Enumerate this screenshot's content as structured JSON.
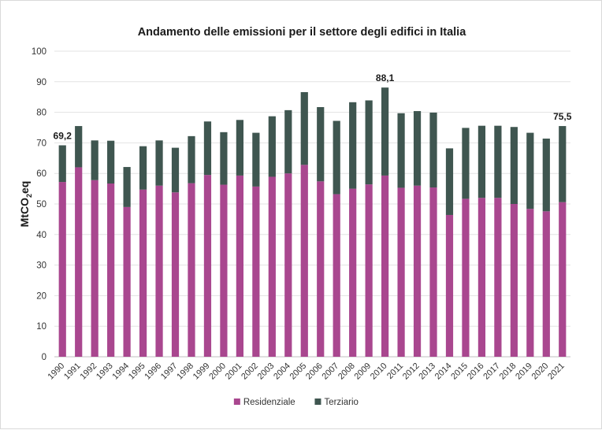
{
  "chart_data": {
    "type": "bar",
    "stacked": true,
    "title": "Andamento delle emissioni per il settore degli edifici in Italia",
    "ylabel": {
      "main": "MtCO",
      "sub": "2",
      "tail": "eq"
    },
    "xlabel": "",
    "ylim": [
      0,
      100
    ],
    "yticks": [
      0,
      10,
      20,
      30,
      40,
      50,
      60,
      70,
      80,
      90,
      100
    ],
    "grid": true,
    "legend_position": "bottom-center",
    "categories": [
      "1990",
      "1991",
      "1992",
      "1993",
      "1994",
      "1995",
      "1996",
      "1997",
      "1998",
      "1999",
      "2000",
      "2001",
      "2002",
      "2003",
      "2004",
      "2005",
      "2006",
      "2007",
      "2008",
      "2009",
      "2010",
      "2011",
      "2012",
      "2013",
      "2014",
      "2015",
      "2016",
      "2017",
      "2018",
      "2019",
      "2020",
      "2021"
    ],
    "series": [
      {
        "name": "Residenziale",
        "color": "#a9478f",
        "values": [
          57.2,
          62.0,
          57.8,
          56.7,
          49.0,
          54.7,
          56.0,
          53.8,
          56.8,
          59.5,
          56.3,
          59.3,
          55.7,
          58.9,
          60.0,
          62.8,
          57.4,
          53.2,
          55.0,
          56.4,
          59.3,
          55.3,
          56.0,
          55.4,
          46.4,
          51.7,
          52.0,
          52.0,
          50.0,
          48.4,
          47.6,
          50.6
        ]
      },
      {
        "name": "Terziario",
        "color": "#3f5650",
        "values": [
          12.0,
          13.5,
          13.0,
          14.0,
          13.1,
          14.2,
          14.8,
          14.6,
          15.4,
          17.5,
          17.2,
          18.2,
          17.6,
          19.8,
          20.7,
          23.8,
          24.3,
          24.0,
          28.3,
          27.5,
          28.8,
          24.4,
          24.4,
          24.5,
          21.8,
          23.2,
          23.6,
          23.6,
          25.2,
          24.9,
          23.8,
          24.9
        ]
      }
    ],
    "annotations": [
      {
        "category": "1990",
        "label": "69,2"
      },
      {
        "category": "2010",
        "label": "88,1"
      },
      {
        "category": "2021",
        "label": "75,5"
      }
    ]
  }
}
